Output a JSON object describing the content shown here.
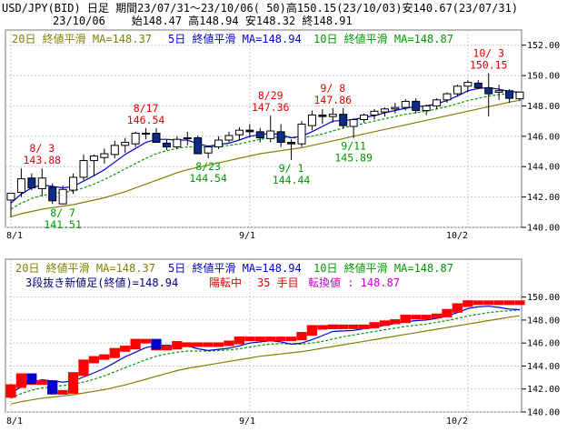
{
  "header": {
    "line1": "USD/JPY(BID) 日足 期間23/07/31～23/10/06( 50)高150.15(23/10/03)安140.67(23/07/31)",
    "line2": "23/10/06    始148.47 高148.94 安148.32 終148.91"
  },
  "colors": {
    "ma20": "#808000",
    "ma5": "#0000cc",
    "ma10": "#009900",
    "up": "#ffffff",
    "down": "#0c2c8a",
    "annotRed": "#e00000",
    "annotGreen": "#009900",
    "brick": "#ff0000",
    "brickDown": "#0000cc"
  },
  "top_legend": {
    "ma20": "20日 終値平滑 MA=148.37",
    "ma5": "5日 終値平滑 MA=148.94",
    "ma10": "10日 終値平滑 MA=148.87"
  },
  "bottom_legend": {
    "ma20": "20日 終値平滑 MA=148.37",
    "ma5": "5日 終値平滑 MA=148.94",
    "ma10": "10日 終値平滑 MA=148.87"
  },
  "bottom_info": {
    "p1": "3段抜き新値足(終値)=148.94",
    "p2": "陽転中",
    "p3": "35 手目",
    "p4": "転換値 : 148.87"
  },
  "chart_data": [
    {
      "type": "candlestick",
      "x_labels": [
        "8/1",
        "9/1",
        "10/2"
      ],
      "ylim": [
        140,
        153
      ],
      "y_ticks": [
        "140.00",
        "142.00",
        "144.00",
        "146.00",
        "148.00",
        "150.00",
        "152.00"
      ],
      "candles": [
        {
          "o": 141.8,
          "h": 142.25,
          "l": 140.67,
          "c": 142.25
        },
        {
          "o": 142.3,
          "h": 143.88,
          "l": 142.0,
          "c": 143.2
        },
        {
          "o": 143.25,
          "h": 143.55,
          "l": 142.45,
          "c": 142.6
        },
        {
          "o": 142.55,
          "h": 143.88,
          "l": 142.05,
          "c": 143.25
        },
        {
          "o": 142.65,
          "h": 142.9,
          "l": 141.55,
          "c": 141.75
        },
        {
          "o": 141.55,
          "h": 142.75,
          "l": 141.51,
          "c": 142.5
        },
        {
          "o": 142.45,
          "h": 143.55,
          "l": 142.2,
          "c": 143.3
        },
        {
          "o": 143.3,
          "h": 144.8,
          "l": 143.1,
          "c": 144.4
        },
        {
          "o": 144.4,
          "h": 144.8,
          "l": 143.4,
          "c": 144.7
        },
        {
          "o": 144.6,
          "h": 145.2,
          "l": 144.2,
          "c": 144.85
        },
        {
          "o": 144.8,
          "h": 145.7,
          "l": 144.55,
          "c": 145.4
        },
        {
          "o": 145.4,
          "h": 145.9,
          "l": 144.9,
          "c": 145.6
        },
        {
          "o": 145.5,
          "h": 146.3,
          "l": 145.3,
          "c": 146.2
        },
        {
          "o": 146.2,
          "h": 146.54,
          "l": 145.8,
          "c": 146.2
        },
        {
          "o": 146.2,
          "h": 146.54,
          "l": 145.6,
          "c": 145.6
        },
        {
          "o": 145.55,
          "h": 145.8,
          "l": 145.1,
          "c": 145.3
        },
        {
          "o": 145.3,
          "h": 146.0,
          "l": 145.15,
          "c": 145.8
        },
        {
          "o": 145.85,
          "h": 146.3,
          "l": 145.4,
          "c": 145.9
        },
        {
          "o": 145.9,
          "h": 146.05,
          "l": 144.9,
          "c": 144.85
        },
        {
          "o": 144.9,
          "h": 145.4,
          "l": 144.54,
          "c": 145.3
        },
        {
          "o": 145.3,
          "h": 146.0,
          "l": 145.15,
          "c": 145.75
        },
        {
          "o": 145.75,
          "h": 146.3,
          "l": 145.6,
          "c": 146.05
        },
        {
          "o": 146.1,
          "h": 146.6,
          "l": 145.75,
          "c": 146.4
        },
        {
          "o": 146.4,
          "h": 146.8,
          "l": 145.9,
          "c": 146.3
        },
        {
          "o": 146.3,
          "h": 146.55,
          "l": 145.6,
          "c": 145.9
        },
        {
          "o": 145.85,
          "h": 147.36,
          "l": 145.6,
          "c": 146.35
        },
        {
          "o": 146.3,
          "h": 146.8,
          "l": 145.3,
          "c": 145.6
        },
        {
          "o": 145.6,
          "h": 145.8,
          "l": 144.44,
          "c": 145.5
        },
        {
          "o": 145.5,
          "h": 147.0,
          "l": 145.3,
          "c": 146.8
        },
        {
          "o": 146.7,
          "h": 147.7,
          "l": 146.4,
          "c": 147.4
        },
        {
          "o": 147.4,
          "h": 147.8,
          "l": 146.8,
          "c": 147.3
        },
        {
          "o": 147.3,
          "h": 147.86,
          "l": 146.9,
          "c": 147.45
        },
        {
          "o": 147.45,
          "h": 147.86,
          "l": 146.5,
          "c": 146.7
        },
        {
          "o": 146.65,
          "h": 147.2,
          "l": 145.89,
          "c": 147.1
        },
        {
          "o": 147.1,
          "h": 147.5,
          "l": 146.9,
          "c": 147.4
        },
        {
          "o": 147.4,
          "h": 147.8,
          "l": 147.1,
          "c": 147.65
        },
        {
          "o": 147.6,
          "h": 147.9,
          "l": 147.3,
          "c": 147.8
        },
        {
          "o": 147.8,
          "h": 148.2,
          "l": 147.5,
          "c": 147.9
        },
        {
          "o": 147.9,
          "h": 148.45,
          "l": 147.7,
          "c": 148.3
        },
        {
          "o": 148.3,
          "h": 148.5,
          "l": 147.5,
          "c": 147.7
        },
        {
          "o": 147.7,
          "h": 148.1,
          "l": 147.4,
          "c": 148.0
        },
        {
          "o": 148.0,
          "h": 148.5,
          "l": 147.8,
          "c": 148.4
        },
        {
          "o": 148.4,
          "h": 148.9,
          "l": 148.2,
          "c": 148.8
        },
        {
          "o": 148.8,
          "h": 149.4,
          "l": 148.6,
          "c": 149.3
        },
        {
          "o": 149.3,
          "h": 149.7,
          "l": 148.9,
          "c": 149.55
        },
        {
          "o": 149.5,
          "h": 149.7,
          "l": 149.1,
          "c": 149.2
        },
        {
          "o": 149.2,
          "h": 150.15,
          "l": 147.3,
          "c": 148.8
        },
        {
          "o": 148.9,
          "h": 149.4,
          "l": 148.4,
          "c": 149.0
        },
        {
          "o": 149.0,
          "h": 149.1,
          "l": 148.2,
          "c": 148.5
        },
        {
          "o": 148.47,
          "h": 148.94,
          "l": 148.32,
          "c": 148.91
        }
      ],
      "ma5": [
        141.6,
        142.2,
        142.6,
        142.8,
        142.7,
        142.6,
        142.7,
        143.05,
        143.4,
        143.8,
        144.3,
        144.8,
        145.2,
        145.6,
        145.8,
        145.8,
        145.75,
        145.75,
        145.5,
        145.35,
        145.45,
        145.55,
        145.75,
        146.0,
        146.1,
        146.2,
        146.1,
        145.9,
        146.0,
        146.3,
        146.65,
        147.0,
        147.05,
        147.1,
        147.25,
        147.35,
        147.55,
        147.7,
        147.85,
        147.95,
        148.0,
        148.15,
        148.35,
        148.65,
        149.0,
        149.15,
        149.2,
        149.1,
        148.95,
        148.9
      ],
      "ma10": [
        141.2,
        141.6,
        141.9,
        142.1,
        142.2,
        142.3,
        142.4,
        142.6,
        142.85,
        143.15,
        143.5,
        143.85,
        144.2,
        144.55,
        144.85,
        145.05,
        145.2,
        145.3,
        145.3,
        145.3,
        145.35,
        145.4,
        145.5,
        145.65,
        145.8,
        145.9,
        145.95,
        145.9,
        145.9,
        146.0,
        146.15,
        146.35,
        146.55,
        146.7,
        146.85,
        147.0,
        147.15,
        147.3,
        147.45,
        147.55,
        147.65,
        147.8,
        147.95,
        148.15,
        148.35,
        148.5,
        148.65,
        148.75,
        148.8,
        148.87
      ],
      "ma20": [
        140.7,
        140.9,
        141.05,
        141.2,
        141.3,
        141.4,
        141.5,
        141.65,
        141.8,
        141.95,
        142.15,
        142.35,
        142.6,
        142.85,
        143.1,
        143.35,
        143.6,
        143.8,
        143.95,
        144.1,
        144.25,
        144.4,
        144.55,
        144.7,
        144.85,
        144.95,
        145.05,
        145.15,
        145.25,
        145.4,
        145.55,
        145.7,
        145.85,
        146.0,
        146.15,
        146.3,
        146.45,
        146.6,
        146.75,
        146.9,
        147.05,
        147.2,
        147.35,
        147.5,
        147.65,
        147.8,
        147.95,
        148.1,
        148.25,
        148.37
      ],
      "annotations": [
        {
          "i": 3,
          "type": "high",
          "date": "8/ 3",
          "value": "143.88"
        },
        {
          "i": 5,
          "type": "low",
          "date": "8/ 7",
          "value": "141.51"
        },
        {
          "i": 13,
          "type": "high",
          "date": "8/17",
          "value": "146.54"
        },
        {
          "i": 19,
          "type": "low",
          "date": "8/23",
          "value": "144.54"
        },
        {
          "i": 25,
          "type": "high",
          "date": "8/29",
          "value": "147.36"
        },
        {
          "i": 27,
          "type": "low",
          "date": "9/ 1",
          "value": "144.44"
        },
        {
          "i": 31,
          "type": "high",
          "date": "9/ 8",
          "value": "147.86"
        },
        {
          "i": 33,
          "type": "low",
          "date": "9/11",
          "value": "145.89"
        },
        {
          "i": 46,
          "type": "high",
          "date": "10/ 3",
          "value": "150.15"
        }
      ]
    },
    {
      "type": "bar",
      "subtype": "new-price-bricks",
      "ylim": [
        140,
        151
      ],
      "y_ticks": [
        "140.00",
        "142.00",
        "144.00",
        "146.00",
        "148.00",
        "150.00"
      ],
      "x_labels": [
        "8/1",
        "9/1",
        "10/2"
      ],
      "bricks": [
        {
          "i": 0,
          "lo": 141.4,
          "hi": 142.25,
          "d": "up"
        },
        {
          "i": 1,
          "lo": 142.25,
          "hi": 143.2,
          "d": "up"
        },
        {
          "i": 2,
          "lo": 142.6,
          "hi": 143.2,
          "d": "dn"
        },
        {
          "i": 4,
          "lo": 141.75,
          "hi": 142.6,
          "d": "dn"
        },
        {
          "i": 6,
          "lo": 141.75,
          "hi": 143.3,
          "d": "up"
        },
        {
          "i": 7,
          "lo": 143.3,
          "hi": 144.4,
          "d": "up"
        },
        {
          "i": 8,
          "lo": 144.4,
          "hi": 144.7,
          "d": "up"
        },
        {
          "i": 9,
          "lo": 144.7,
          "hi": 144.85,
          "d": "up"
        },
        {
          "i": 10,
          "lo": 144.85,
          "hi": 145.4,
          "d": "up"
        },
        {
          "i": 11,
          "lo": 145.4,
          "hi": 145.6,
          "d": "up"
        },
        {
          "i": 12,
          "lo": 145.6,
          "hi": 146.2,
          "d": "up"
        },
        {
          "i": 14,
          "lo": 145.6,
          "hi": 146.2,
          "d": "dn"
        },
        {
          "i": 16,
          "lo": 145.6,
          "hi": 146.0,
          "d": "up"
        },
        {
          "i": 17,
          "lo": 145.8,
          "hi": 145.9,
          "d": "up"
        },
        {
          "i": 21,
          "lo": 145.9,
          "hi": 146.05,
          "d": "up"
        },
        {
          "i": 22,
          "lo": 146.05,
          "hi": 146.4,
          "d": "up"
        },
        {
          "i": 28,
          "lo": 146.4,
          "hi": 146.8,
          "d": "up"
        },
        {
          "i": 29,
          "lo": 146.8,
          "hi": 147.4,
          "d": "up"
        },
        {
          "i": 31,
          "lo": 147.4,
          "hi": 147.45,
          "d": "up"
        },
        {
          "i": 35,
          "lo": 147.45,
          "hi": 147.65,
          "d": "up"
        },
        {
          "i": 36,
          "lo": 147.65,
          "hi": 147.8,
          "d": "up"
        },
        {
          "i": 37,
          "lo": 147.8,
          "hi": 147.9,
          "d": "up"
        },
        {
          "i": 38,
          "lo": 147.9,
          "hi": 148.3,
          "d": "up"
        },
        {
          "i": 41,
          "lo": 148.3,
          "hi": 148.4,
          "d": "up"
        },
        {
          "i": 42,
          "lo": 148.4,
          "hi": 148.8,
          "d": "up"
        },
        {
          "i": 43,
          "lo": 148.8,
          "hi": 149.3,
          "d": "up"
        },
        {
          "i": 44,
          "lo": 149.3,
          "hi": 149.55,
          "d": "up"
        }
      ],
      "final_level": 149.2
    }
  ]
}
